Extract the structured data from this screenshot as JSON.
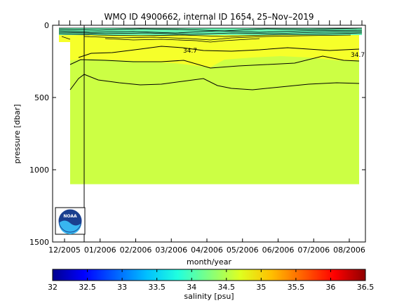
{
  "chart_data": {
    "type": "heatmap",
    "title": "WMO ID 4900662, internal ID 1654, 25–Nov–2019",
    "xlabel": "month/year",
    "ylabel": "pressure [dbar]",
    "x_tick_labels": [
      "12/2005",
      "01/2006",
      "02/2006",
      "03/2006",
      "04/2006",
      "05/2006",
      "06/2006",
      "07/2006",
      "08/2006"
    ],
    "y_ticks": [
      0,
      500,
      1000,
      1500
    ],
    "ylim": [
      1500,
      0
    ],
    "colorbar": {
      "label": "salinity [psu]",
      "range": [
        32,
        36.5
      ],
      "ticks": [
        "32",
        "32.5",
        "33",
        "33.5",
        "34",
        "34.5",
        "35",
        "35.5",
        "36",
        "36.5"
      ],
      "colors": [
        "#00008f",
        "#0000ff",
        "#0060ff",
        "#00bfff",
        "#20ffdf",
        "#80ff80",
        "#dfff20",
        "#ffbf00",
        "#ff6000",
        "#ff0000",
        "#8f0000"
      ]
    },
    "field_colors": {
      "deep": "#ccff44",
      "upper": "#f6ff2a",
      "surface_mix": "#66f0b0"
    },
    "data_pressure_max": 1100,
    "contour_labels": [
      {
        "text": "34.7",
        "month": "03/2006"
      },
      {
        "text": "34.7",
        "month": "08/2006"
      }
    ],
    "logo": {
      "text": "NOAA",
      "icon": "noaa-logo-icon"
    }
  }
}
